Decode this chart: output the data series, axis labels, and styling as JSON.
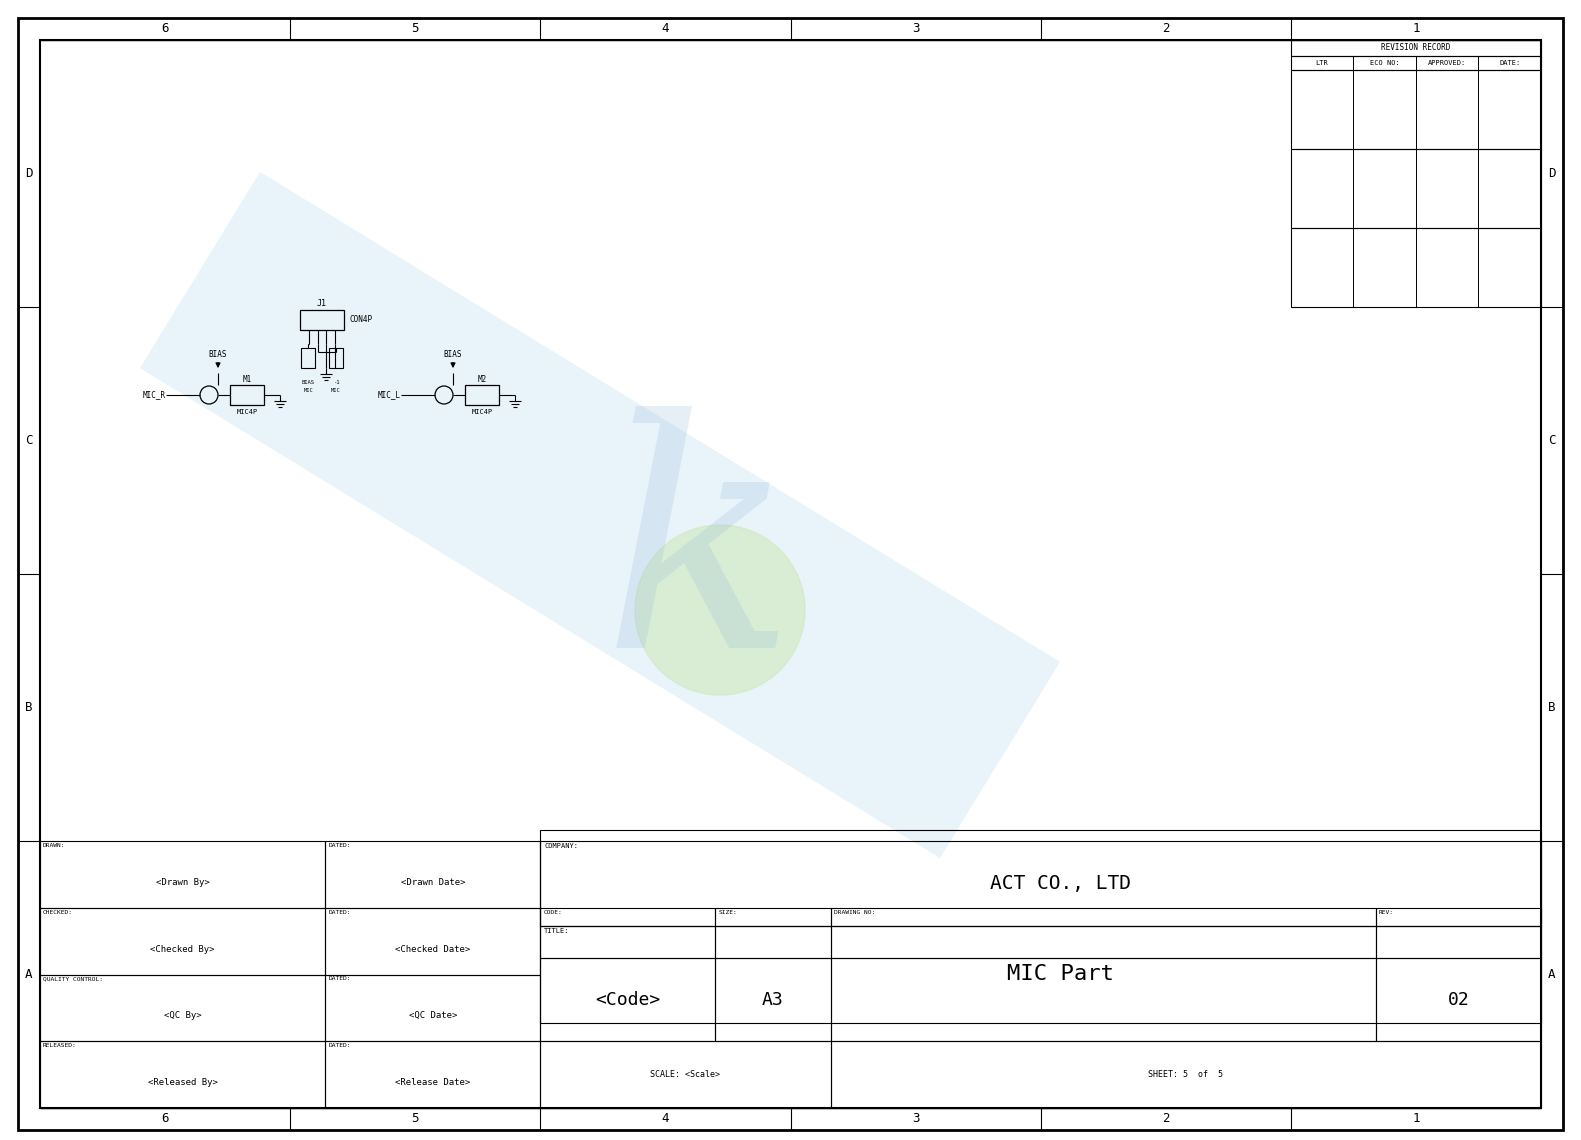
{
  "bg_color": "#ffffff",
  "company": "ACT CO., LTD",
  "drawing_title": "MIC Part",
  "code": "<Code>",
  "size": "A3",
  "rev": "02",
  "sheet": "SHEET: 5  of  5",
  "scale_text": "SCALE: <Scale>",
  "drawn_by": "<Drawn By>",
  "drawn_date": "<Drawn Date>",
  "checked_by": "<Checked By>",
  "checked_date": "<Checked Date>",
  "qc_by": "<QC By>",
  "qc_date": "<QC Date>",
  "released_by": "<Released By>",
  "release_date": "<Release Date>",
  "col_labels": [
    "6",
    "5",
    "4",
    "3",
    "2",
    "1"
  ],
  "row_labels": [
    "D",
    "C",
    "B",
    "A"
  ],
  "revision_headers": [
    "LTR",
    "ECO NO:",
    "APPROVED:",
    "DATE:"
  ],
  "wm_blue": "#b8d8f0",
  "wm_green": "#c8e8b0"
}
